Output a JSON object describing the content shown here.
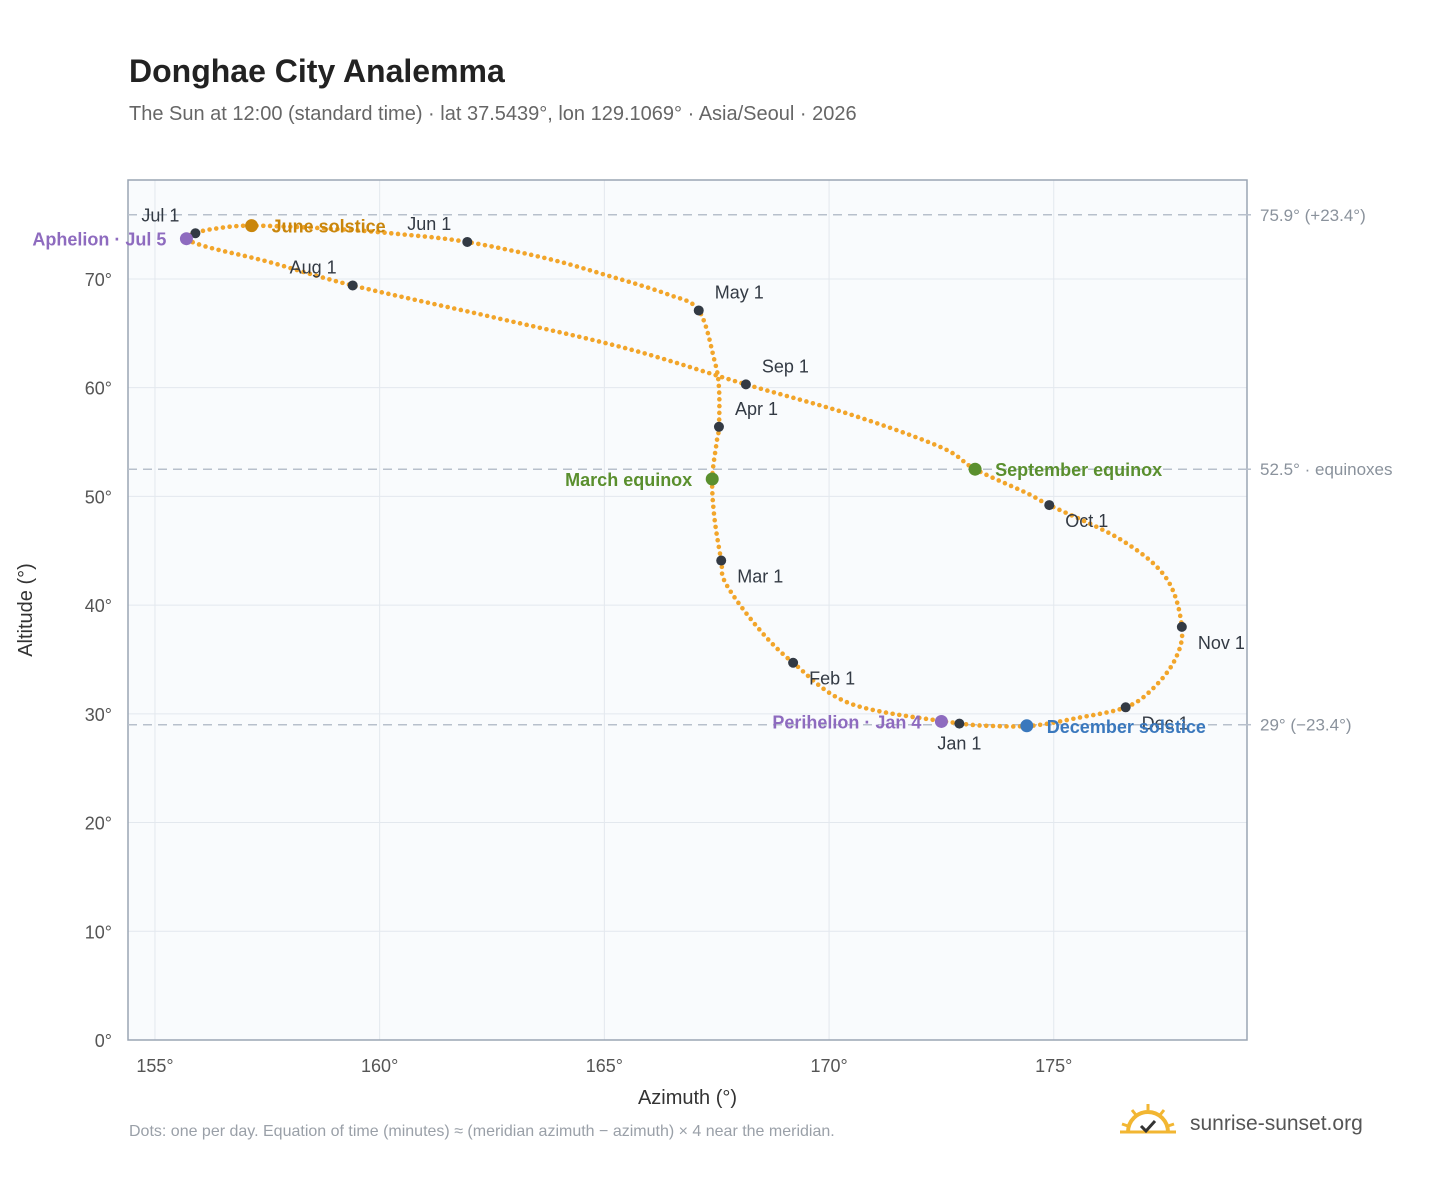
{
  "title": "Donghae City Analemma",
  "subtitle": "The Sun at 12:00 (standard time) · lat 37.5439°, lon 129.1069° · Asia/Seoul · 2026",
  "footnote": "Dots: one per day. Equation of time (minutes) ≈ (meridian azimuth − azimuth) × 4 near the meridian.",
  "brand": {
    "name": "sunrise-sunset.org",
    "icon": "sun-check-icon",
    "color": "#f2b632"
  },
  "chart_data": {
    "type": "scatter",
    "xlabel": "Azimuth (°)",
    "ylabel": "Altitude (°)",
    "xlim": [
      154.4,
      179.3
    ],
    "ylim": [
      0,
      79.1
    ],
    "xticks": [
      155,
      160,
      165,
      170,
      175
    ],
    "xtick_labels": [
      "155°",
      "160°",
      "165°",
      "170°",
      "175°"
    ],
    "yticks": [
      0,
      10,
      20,
      30,
      40,
      50,
      60,
      70
    ],
    "ytick_labels": [
      "0°",
      "10°",
      "20°",
      "30°",
      "40°",
      "50°",
      "60°",
      "70°"
    ],
    "grid": true,
    "colors": {
      "curve": "#f2a52a",
      "month": "#333a44",
      "aphelion": "#8e6bbf",
      "perihelion": "#8e6bbf",
      "june": "#c9860c",
      "equinox": "#5a8f2e",
      "december": "#3a78bd",
      "refline": "#b8c0cc",
      "plot_bg": "#f9fbfd",
      "frame": "#9aa5b4"
    },
    "reference_lines": [
      {
        "y": 75.9,
        "label": "75.9° (+23.4°)"
      },
      {
        "y": 52.5,
        "label": "52.5° · equinoxes"
      },
      {
        "y": 29,
        "label": "29° (−23.4°)"
      }
    ],
    "curve_points": [
      [
        172.9,
        29.1
      ],
      [
        170.5,
        30.9
      ],
      [
        169.2,
        34.7
      ],
      [
        168.4,
        38.0
      ],
      [
        167.7,
        42.0
      ],
      [
        167.6,
        44.1
      ],
      [
        167.45,
        48.0
      ],
      [
        167.4,
        51.6
      ],
      [
        167.5,
        55.0
      ],
      [
        167.55,
        56.4
      ],
      [
        167.55,
        60.0
      ],
      [
        167.45,
        62.5
      ],
      [
        167.1,
        67.1
      ],
      [
        166.4,
        68.6
      ],
      [
        165.0,
        70.4
      ],
      [
        163.7,
        71.9
      ],
      [
        161.95,
        73.4
      ],
      [
        160.5,
        74.1
      ],
      [
        159.0,
        74.6
      ],
      [
        157.15,
        74.9
      ],
      [
        156.3,
        74.6
      ],
      [
        155.9,
        74.2
      ],
      [
        155.7,
        73.7
      ],
      [
        156.2,
        72.9
      ],
      [
        157.5,
        71.6
      ],
      [
        159.4,
        69.4
      ],
      [
        162.5,
        66.5
      ],
      [
        165.5,
        63.6
      ],
      [
        168.15,
        60.3
      ],
      [
        170.5,
        57.5
      ],
      [
        172.5,
        54.5
      ],
      [
        173.25,
        52.5
      ],
      [
        174.4,
        50.3
      ],
      [
        174.9,
        49.2
      ],
      [
        176.5,
        46.0
      ],
      [
        177.5,
        42.5
      ],
      [
        177.85,
        38.0
      ],
      [
        177.7,
        35.0
      ],
      [
        177.2,
        32.3
      ],
      [
        176.6,
        30.6
      ],
      [
        175.5,
        29.6
      ],
      [
        174.5,
        28.9
      ],
      [
        173.5,
        28.9
      ],
      [
        172.9,
        29.1
      ]
    ],
    "months": [
      {
        "label": "Jan 1",
        "az": 172.9,
        "alt": 29.1,
        "anchor": "below"
      },
      {
        "label": "Feb 1",
        "az": 169.2,
        "alt": 34.7,
        "anchor": "below-right"
      },
      {
        "label": "Mar 1",
        "az": 167.6,
        "alt": 44.1,
        "anchor": "below-right"
      },
      {
        "label": "Apr 1",
        "az": 167.55,
        "alt": 56.4,
        "anchor": "above-right"
      },
      {
        "label": "May 1",
        "az": 167.1,
        "alt": 67.1,
        "anchor": "above-right"
      },
      {
        "label": "Jun 1",
        "az": 161.95,
        "alt": 73.4,
        "anchor": "above-left"
      },
      {
        "label": "Jul 1",
        "az": 155.9,
        "alt": 74.2,
        "anchor": "above-left"
      },
      {
        "label": "Aug 1",
        "az": 159.4,
        "alt": 69.4,
        "anchor": "above-left"
      },
      {
        "label": "Sep 1",
        "az": 168.15,
        "alt": 60.3,
        "anchor": "above-right"
      },
      {
        "label": "Oct 1",
        "az": 174.9,
        "alt": 49.2,
        "anchor": "below-right"
      },
      {
        "label": "Nov 1",
        "az": 177.85,
        "alt": 38.0,
        "anchor": "below-right"
      },
      {
        "label": "Dec 1",
        "az": 176.6,
        "alt": 30.6,
        "anchor": "below-right"
      }
    ],
    "events": [
      {
        "label": "Aphelion · Jul 5",
        "az": 155.7,
        "alt": 73.7,
        "color": "aphelion",
        "anchor": "left"
      },
      {
        "label": "June solstice",
        "az": 157.15,
        "alt": 74.9,
        "color": "june",
        "anchor": "right"
      },
      {
        "label": "March equinox",
        "az": 167.4,
        "alt": 51.6,
        "color": "equinox",
        "anchor": "left"
      },
      {
        "label": "September equinox",
        "az": 173.25,
        "alt": 52.5,
        "color": "equinox",
        "anchor": "right"
      },
      {
        "label": "Perihelion · Jan 4",
        "az": 172.5,
        "alt": 29.3,
        "color": "perihelion",
        "anchor": "left"
      },
      {
        "label": "December solstice",
        "az": 174.4,
        "alt": 28.9,
        "color": "december",
        "anchor": "right"
      }
    ]
  }
}
